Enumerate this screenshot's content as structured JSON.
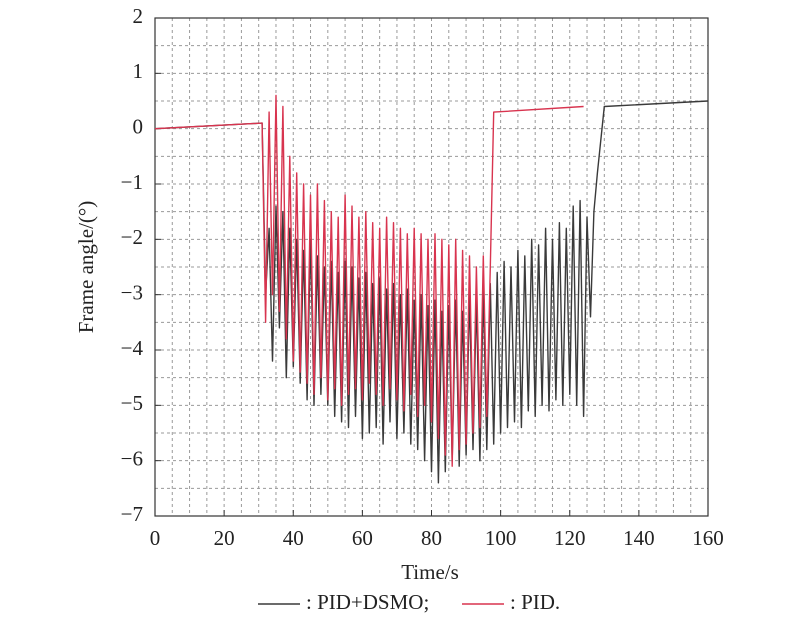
{
  "chart_data": {
    "type": "line",
    "xlabel": "Time/s",
    "ylabel": "Frame angle/(°)",
    "xlim": [
      0,
      160
    ],
    "xticks": [
      0,
      20,
      40,
      60,
      80,
      100,
      120,
      140,
      160
    ],
    "ylim": [
      -7,
      2
    ],
    "yticks": [
      {
        "value": -7,
        "label": "−7"
      },
      {
        "value": -6,
        "label": "−6"
      },
      {
        "value": -5,
        "label": "−5"
      },
      {
        "value": -4,
        "label": "−4"
      },
      {
        "value": -3,
        "label": "−3"
      },
      {
        "value": -2,
        "label": "−2"
      },
      {
        "value": -1,
        "label": "−1"
      },
      0,
      1,
      2
    ],
    "xminorticks": [
      5,
      10,
      15,
      20,
      25,
      30,
      35,
      40,
      45,
      50,
      55,
      60,
      65,
      70,
      75,
      80,
      85,
      90,
      95,
      100,
      105,
      110,
      115,
      120,
      125,
      130,
      135,
      140,
      145,
      150,
      155
    ],
    "yminorticks": [
      -6.5,
      -6,
      -5.5,
      -5,
      -4.5,
      -4,
      -3.5,
      -3,
      -2.5,
      -2,
      -1.5,
      -1,
      -0.5,
      0,
      0.5,
      1,
      1.5
    ],
    "grid": true,
    "series": [
      {
        "name": ": PID+DSMO;",
        "color": "#3a3a3a",
        "x": [
          0,
          31,
          32,
          33,
          34,
          35,
          36,
          37,
          38,
          39,
          40,
          41,
          42,
          43,
          44,
          45,
          46,
          47,
          48,
          49,
          50,
          51,
          52,
          53,
          54,
          55,
          56,
          57,
          58,
          59,
          60,
          61,
          62,
          63,
          64,
          65,
          66,
          67,
          68,
          69,
          70,
          71,
          72,
          73,
          74,
          75,
          76,
          77,
          78,
          79,
          80,
          81,
          82,
          83,
          84,
          85,
          86,
          87,
          88,
          89,
          90,
          91,
          92,
          93,
          94,
          95,
          96,
          97,
          98,
          99,
          100,
          101,
          102,
          103,
          104,
          105,
          106,
          107,
          108,
          109,
          110,
          111,
          112,
          113,
          114,
          115,
          116,
          117,
          118,
          119,
          120,
          121,
          122,
          123,
          124,
          125,
          126,
          127,
          128,
          130,
          160
        ],
        "values": [
          0,
          0.1,
          -3.0,
          -1.8,
          -4.2,
          -1.4,
          -3.6,
          -1.5,
          -4.5,
          -1.8,
          -4.3,
          -2.0,
          -4.6,
          -2.2,
          -4.9,
          -2.0,
          -5.0,
          -2.3,
          -4.8,
          -2.5,
          -5.0,
          -2.4,
          -5.2,
          -2.6,
          -5.3,
          -2.4,
          -5.4,
          -2.5,
          -5.2,
          -2.7,
          -5.6,
          -2.6,
          -5.5,
          -2.8,
          -5.4,
          -2.7,
          -5.7,
          -2.9,
          -5.3,
          -2.8,
          -5.6,
          -3.0,
          -5.5,
          -2.9,
          -5.7,
          -3.1,
          -5.8,
          -3.0,
          -6.0,
          -3.2,
          -6.2,
          -3.1,
          -6.4,
          -3.3,
          -6.2,
          -3.2,
          -6.0,
          -3.1,
          -6.1,
          -3.3,
          -5.9,
          -3.0,
          -5.8,
          -3.1,
          -6.0,
          -2.9,
          -5.8,
          -2.8,
          -5.7,
          -2.6,
          -5.5,
          -2.4,
          -5.4,
          -2.5,
          -5.3,
          -2.2,
          -5.4,
          -2.3,
          -5.1,
          -2.0,
          -5.2,
          -2.1,
          -5.0,
          -1.8,
          -5.1,
          -2.0,
          -4.9,
          -1.7,
          -5.0,
          -1.8,
          -4.8,
          -1.4,
          -5.0,
          -1.3,
          -5.2,
          -1.6,
          -3.4,
          -1.5,
          -0.8,
          0.4,
          0.5
        ]
      },
      {
        "name": ": PID.",
        "color": "#d8344f",
        "x": [
          0,
          31,
          32,
          33,
          34,
          35,
          36,
          37,
          38,
          39,
          40,
          41,
          42,
          43,
          44,
          45,
          46,
          47,
          48,
          49,
          50,
          51,
          52,
          53,
          54,
          55,
          56,
          57,
          58,
          59,
          60,
          61,
          62,
          63,
          64,
          65,
          66,
          67,
          68,
          69,
          70,
          71,
          72,
          73,
          74,
          75,
          76,
          77,
          78,
          79,
          80,
          81,
          82,
          83,
          84,
          85,
          86,
          87,
          88,
          89,
          90,
          91,
          92,
          93,
          94,
          95,
          96,
          97,
          98,
          124
        ],
        "values": [
          0,
          0.1,
          -3.5,
          0.3,
          -3,
          0.6,
          -3.3,
          0.4,
          -3.8,
          -0.5,
          -4.2,
          -0.8,
          -4.4,
          -1.0,
          -4.6,
          -1.2,
          -4.8,
          -1.0,
          -4.5,
          -1.3,
          -4.9,
          -1.5,
          -4.7,
          -1.6,
          -5.0,
          -1.2,
          -4.8,
          -1.4,
          -4.7,
          -1.6,
          -4.9,
          -1.5,
          -4.6,
          -1.7,
          -4.8,
          -1.8,
          -5.0,
          -1.6,
          -4.7,
          -1.7,
          -4.9,
          -1.8,
          -5.1,
          -1.9,
          -4.8,
          -1.8,
          -5.2,
          -1.9,
          -5.0,
          -2.0,
          -5.3,
          -1.9,
          -5.6,
          -2.0,
          -5.9,
          -2.1,
          -6.1,
          -2.0,
          -5.8,
          -2.2,
          -5.7,
          -2.3,
          -5.5,
          -2.5,
          -5.4,
          -2.3,
          -5.2,
          -2.5,
          0.3,
          0.4
        ]
      }
    ]
  }
}
